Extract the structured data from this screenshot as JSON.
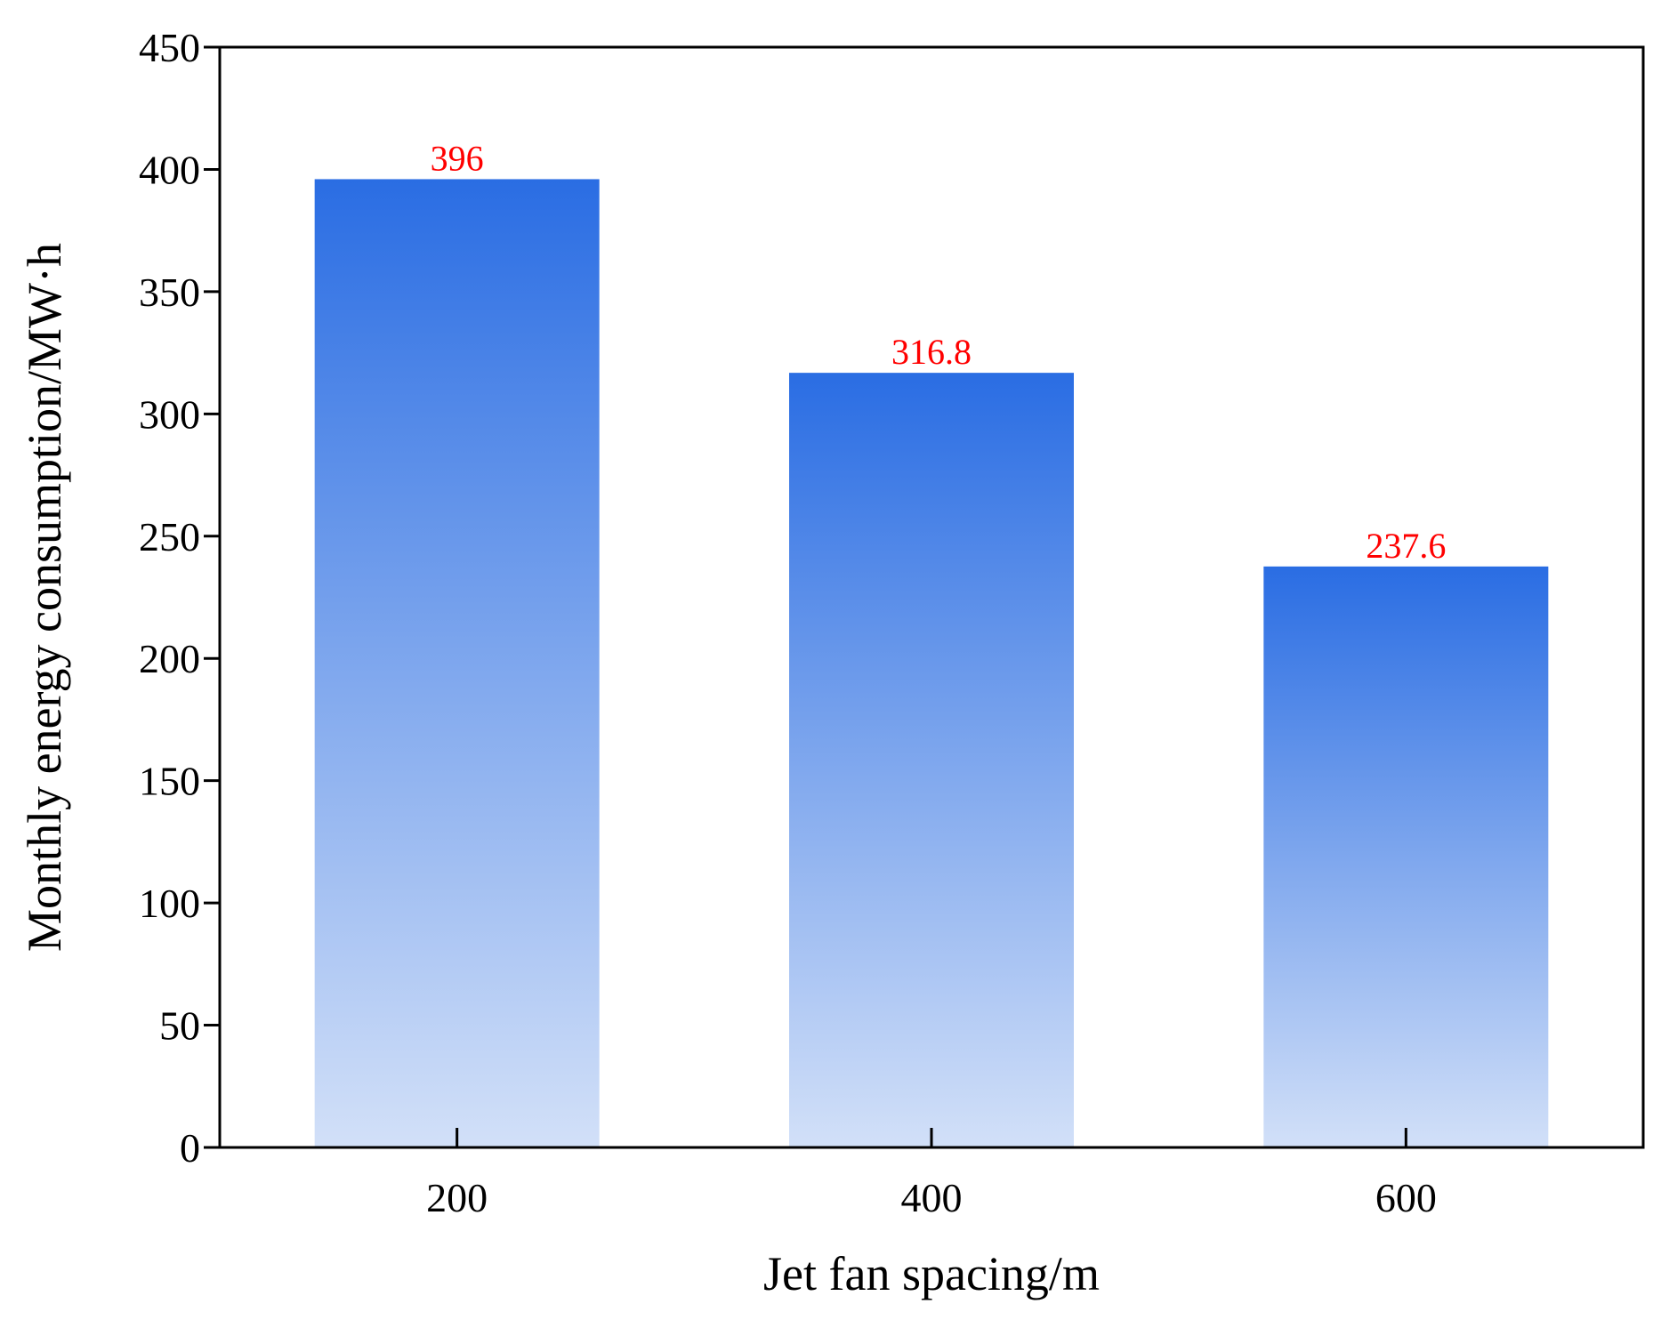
{
  "chart_data": {
    "type": "bar",
    "title": "",
    "xlabel": "Jet fan spacing/m",
    "ylabel": "Monthly energy consumption/MW·h",
    "categories": [
      "200",
      "400",
      "600"
    ],
    "values": [
      396,
      316.8,
      237.6
    ],
    "data_labels": [
      "396",
      "316.8",
      "237.6"
    ],
    "ylim": [
      0,
      450
    ],
    "yticks": [
      0,
      50,
      100,
      150,
      200,
      250,
      300,
      350,
      400,
      450
    ],
    "ytick_labels": [
      "0",
      "50",
      "100",
      "150",
      "200",
      "250",
      "300",
      "350",
      "400",
      "450"
    ],
    "grid": false,
    "legend": "none",
    "colors": {
      "bar_top": "#2a6de3",
      "bar_bottom": "#d2e0f8",
      "data_label": "#ff0000",
      "axis": "#000000"
    }
  }
}
